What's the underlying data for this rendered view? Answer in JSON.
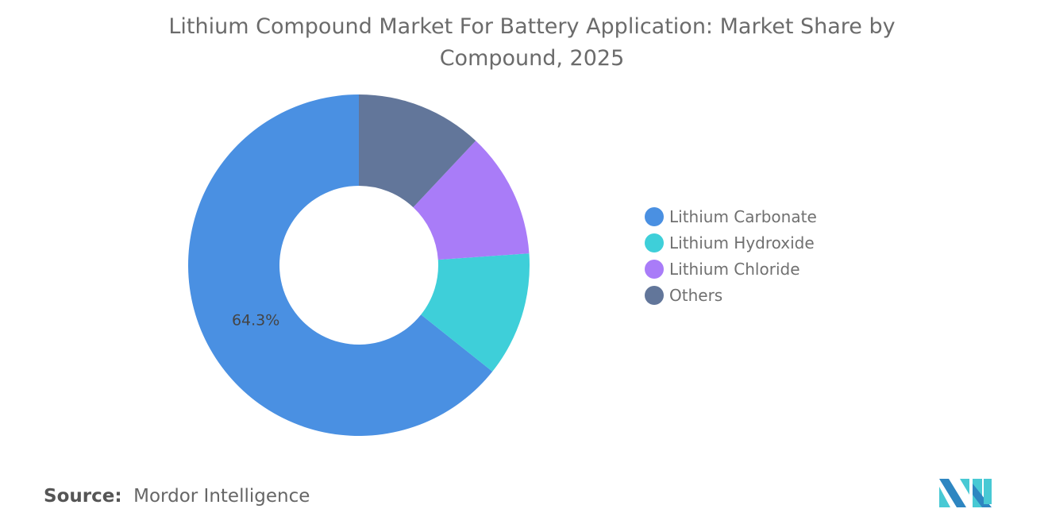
{
  "chart_data": {
    "type": "pie",
    "variant": "donut",
    "title": "Lithium Compound Market For Battery Application: Market Share by Compound, 2025",
    "categories": [
      "Lithium Carbonate",
      "Lithium Hydroxide",
      "Lithium Chloride",
      "Others"
    ],
    "values": [
      64.3,
      11.8,
      11.9,
      12.0
    ],
    "unit": "%",
    "data_labels": [
      "64.3%",
      "",
      "",
      ""
    ],
    "colors": [
      "#4a90e2",
      "#3ecfd9",
      "#a97cf8",
      "#62769a"
    ],
    "legend_position": "right"
  },
  "source": {
    "label": "Source:",
    "value": "Mordor Intelligence"
  },
  "logo": {
    "name": "mordor-intelligence-logo",
    "colors": [
      "#2e86c1",
      "#48c9d4"
    ]
  }
}
